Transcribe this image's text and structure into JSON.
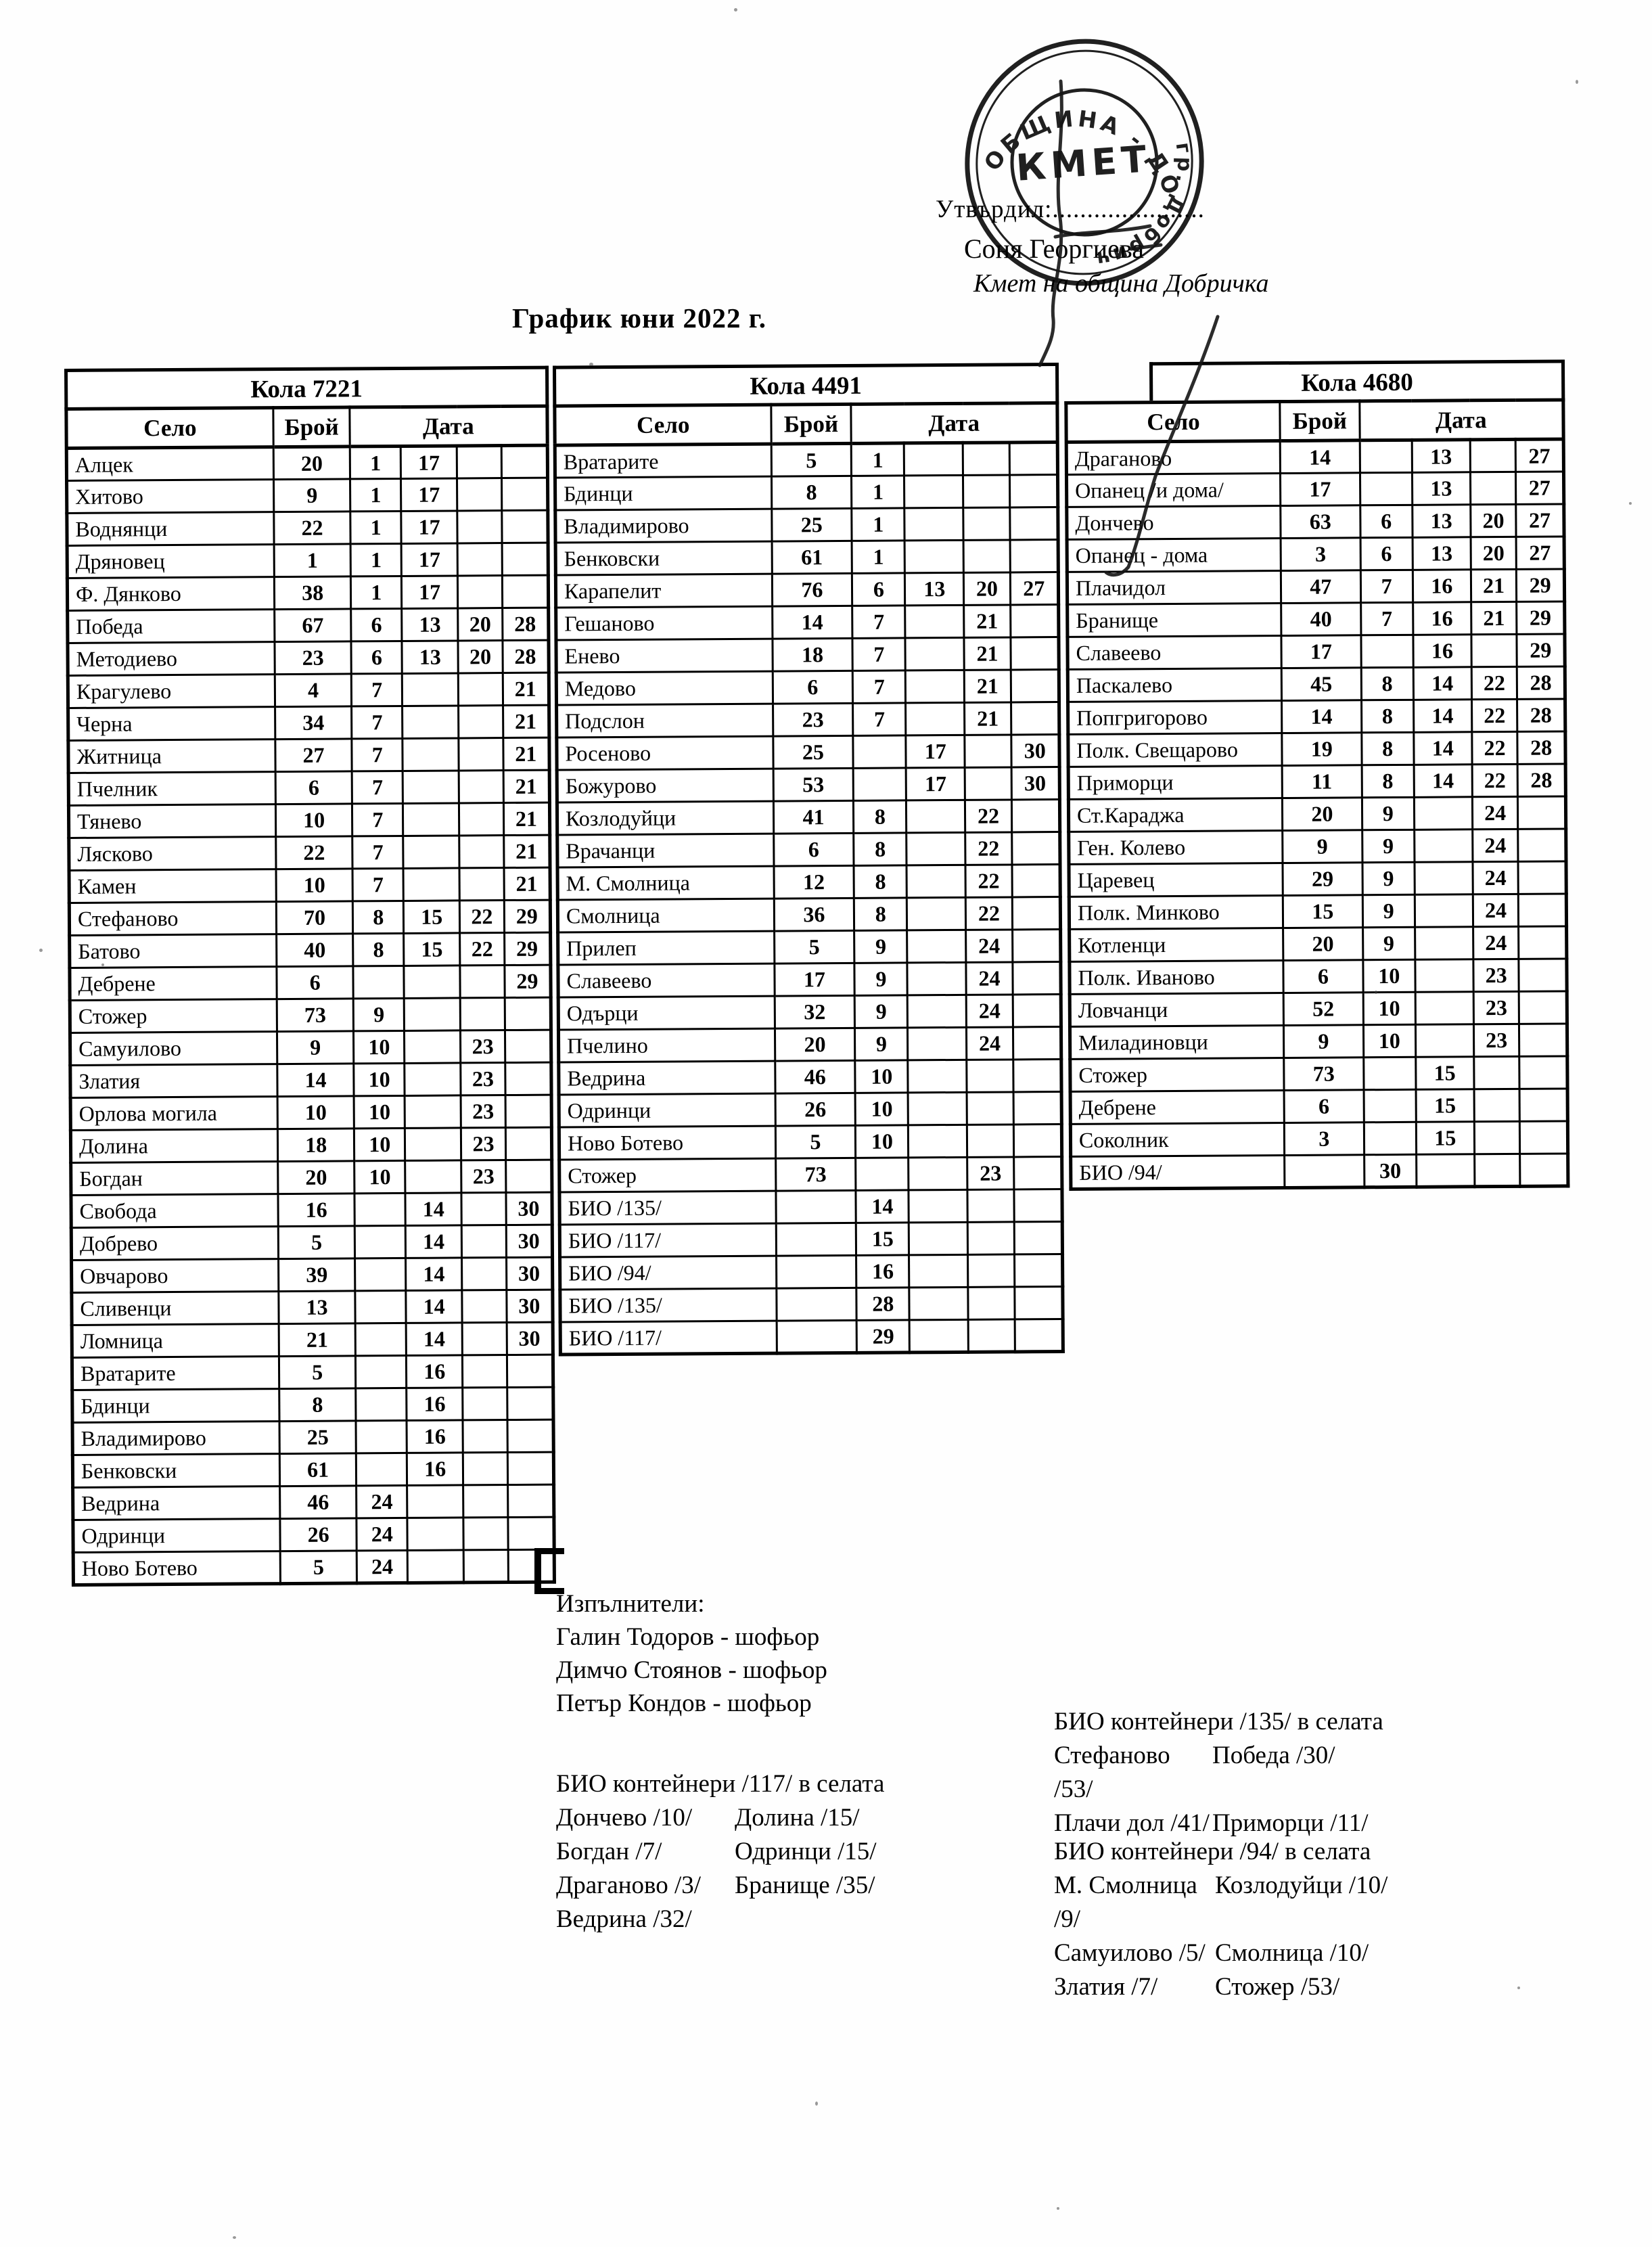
{
  "approval": {
    "label": "Утвърдил:......................",
    "name": "Соня Георгиева",
    "role": "Кмет  на община Добричка"
  },
  "stamp": {
    "ring_text_top": "ОБЩИНА - ДОБРИЧКА",
    "ring_text_right": "гр. Добрич",
    "center_text": "КМЕТ"
  },
  "title": "График юни 2022 г.",
  "columns": {
    "village": "Село",
    "count": "Брой",
    "date": "Дата"
  },
  "tables": [
    {
      "car": "Кола 7221",
      "rows": [
        [
          "Алцек",
          "20",
          "1",
          "17",
          "",
          ""
        ],
        [
          "Хитово",
          "9",
          "1",
          "17",
          "",
          ""
        ],
        [
          "Воднянци",
          "22",
          "1",
          "17",
          "",
          ""
        ],
        [
          "Дряновец",
          "1",
          "1",
          "17",
          "",
          ""
        ],
        [
          "Ф. Дянково",
          "38",
          "1",
          "17",
          "",
          ""
        ],
        [
          "Победа",
          "67",
          "6",
          "13",
          "20",
          "28"
        ],
        [
          "Методиево",
          "23",
          "6",
          "13",
          "20",
          "28"
        ],
        [
          "Крагулево",
          "4",
          "7",
          "",
          "",
          "21"
        ],
        [
          "Черна",
          "34",
          "7",
          "",
          "",
          "21"
        ],
        [
          "Житница",
          "27",
          "7",
          "",
          "",
          "21"
        ],
        [
          "Пчелник",
          "6",
          "7",
          "",
          "",
          "21"
        ],
        [
          "Тянево",
          "10",
          "7",
          "",
          "",
          "21"
        ],
        [
          "Лясково",
          "22",
          "7",
          "",
          "",
          "21"
        ],
        [
          "Камен",
          "10",
          "7",
          "",
          "",
          "21"
        ],
        [
          "Стефаново",
          "70",
          "8",
          "15",
          "22",
          "29"
        ],
        [
          "Батово",
          "40",
          "8",
          "15",
          "22",
          "29"
        ],
        [
          "Дебрене",
          "6",
          "",
          "",
          "",
          "29"
        ],
        [
          "Стожер",
          "73",
          "9",
          "",
          "",
          ""
        ],
        [
          "Самуилово",
          "9",
          "10",
          "",
          "23",
          ""
        ],
        [
          "Златия",
          "14",
          "10",
          "",
          "23",
          ""
        ],
        [
          "Орлова могила",
          "10",
          "10",
          "",
          "23",
          ""
        ],
        [
          "Долина",
          "18",
          "10",
          "",
          "23",
          ""
        ],
        [
          "Богдан",
          "20",
          "10",
          "",
          "23",
          ""
        ],
        [
          "Свобода",
          "16",
          "",
          "14",
          "",
          "30"
        ],
        [
          "Добрево",
          "5",
          "",
          "14",
          "",
          "30"
        ],
        [
          "Овчарово",
          "39",
          "",
          "14",
          "",
          "30"
        ],
        [
          "Сливенци",
          "13",
          "",
          "14",
          "",
          "30"
        ],
        [
          "Ломница",
          "21",
          "",
          "14",
          "",
          "30"
        ],
        [
          "Вратарите",
          "5",
          "",
          "16",
          "",
          ""
        ],
        [
          "Бдинци",
          "8",
          "",
          "16",
          "",
          ""
        ],
        [
          "Владимирово",
          "25",
          "",
          "16",
          "",
          ""
        ],
        [
          "Бенковски",
          "61",
          "",
          "16",
          "",
          ""
        ],
        [
          "Ведрина",
          "46",
          "24",
          "",
          "",
          ""
        ],
        [
          "Одринци",
          "26",
          "24",
          "",
          "",
          ""
        ],
        [
          "Ново Ботево",
          "5",
          "24",
          "",
          "",
          ""
        ]
      ]
    },
    {
      "car": "Кола 4491",
      "rows": [
        [
          "Вратарите",
          "5",
          "1",
          "",
          "",
          ""
        ],
        [
          "Бдинци",
          "8",
          "1",
          "",
          "",
          ""
        ],
        [
          "Владимирово",
          "25",
          "1",
          "",
          "",
          ""
        ],
        [
          "Бенковски",
          "61",
          "1",
          "",
          "",
          ""
        ],
        [
          "Карапелит",
          "76",
          "6",
          "13",
          "20",
          "27"
        ],
        [
          "Гешаново",
          "14",
          "7",
          "",
          "21",
          ""
        ],
        [
          "Енево",
          "18",
          "7",
          "",
          "21",
          ""
        ],
        [
          "Медово",
          "6",
          "7",
          "",
          "21",
          ""
        ],
        [
          "Подслон",
          "23",
          "7",
          "",
          "21",
          ""
        ],
        [
          "Росеново",
          "25",
          "",
          "17",
          "",
          "30"
        ],
        [
          "Божурово",
          "53",
          "",
          "17",
          "",
          "30"
        ],
        [
          "Козлодуйци",
          "41",
          "8",
          "",
          "22",
          ""
        ],
        [
          "Врачанци",
          "6",
          "8",
          "",
          "22",
          ""
        ],
        [
          "М. Смолница",
          "12",
          "8",
          "",
          "22",
          ""
        ],
        [
          "Смолница",
          "36",
          "8",
          "",
          "22",
          ""
        ],
        [
          "Прилеп",
          "5",
          "9",
          "",
          "24",
          ""
        ],
        [
          "Славеево",
          "17",
          "9",
          "",
          "24",
          ""
        ],
        [
          "Одърци",
          "32",
          "9",
          "",
          "24",
          ""
        ],
        [
          "Пчелино",
          "20",
          "9",
          "",
          "24",
          ""
        ],
        [
          "Ведрина",
          "46",
          "10",
          "",
          "",
          ""
        ],
        [
          "Одринци",
          "26",
          "10",
          "",
          "",
          ""
        ],
        [
          "Ново Ботево",
          "5",
          "10",
          "",
          "",
          ""
        ],
        [
          "Стожер",
          "73",
          "",
          "",
          "23",
          ""
        ],
        [
          "БИО /135/",
          "",
          "14",
          "",
          "",
          ""
        ],
        [
          "БИО /117/",
          "",
          "15",
          "",
          "",
          ""
        ],
        [
          "БИО /94/",
          "",
          "16",
          "",
          "",
          ""
        ],
        [
          "БИО /135/",
          "",
          "28",
          "",
          "",
          ""
        ],
        [
          "БИО /117/",
          "",
          "29",
          "",
          "",
          ""
        ]
      ]
    },
    {
      "car": "Кола 4680",
      "rows": [
        [
          "Драганово",
          "14",
          "",
          "13",
          "",
          "27"
        ],
        [
          "Опанец /и дома/",
          "17",
          "",
          "13",
          "",
          "27"
        ],
        [
          "Дончево",
          "63",
          "6",
          "13",
          "20",
          "27"
        ],
        [
          "Опанец - дома",
          "3",
          "6",
          "13",
          "20",
          "27"
        ],
        [
          "Плачидол",
          "47",
          "7",
          "16",
          "21",
          "29"
        ],
        [
          "Бранище",
          "40",
          "7",
          "16",
          "21",
          "29"
        ],
        [
          "Славеево",
          "17",
          "",
          "16",
          "",
          "29"
        ],
        [
          "Паскалево",
          "45",
          "8",
          "14",
          "22",
          "28"
        ],
        [
          "Попгригорово",
          "14",
          "8",
          "14",
          "22",
          "28"
        ],
        [
          "Полк. Свещарово",
          "19",
          "8",
          "14",
          "22",
          "28"
        ],
        [
          "Приморци",
          "11",
          "8",
          "14",
          "22",
          "28"
        ],
        [
          "Ст.Караджа",
          "20",
          "9",
          "",
          "24",
          ""
        ],
        [
          "Ген. Колево",
          "9",
          "9",
          "",
          "24",
          ""
        ],
        [
          "Царевец",
          "29",
          "9",
          "",
          "24",
          ""
        ],
        [
          "Полк. Минково",
          "15",
          "9",
          "",
          "24",
          ""
        ],
        [
          "Котленци",
          "20",
          "9",
          "",
          "24",
          ""
        ],
        [
          "Полк. Иваново",
          "6",
          "10",
          "",
          "23",
          ""
        ],
        [
          "Ловчанци",
          "52",
          "10",
          "",
          "23",
          ""
        ],
        [
          "Миладиновци",
          "9",
          "10",
          "",
          "23",
          ""
        ],
        [
          "Стожер",
          "73",
          "",
          "15",
          "",
          ""
        ],
        [
          "Дебрене",
          "6",
          "",
          "15",
          "",
          ""
        ],
        [
          "Соколник",
          "3",
          "",
          "15",
          "",
          ""
        ],
        [
          "БИО /94/",
          "",
          "30",
          "",
          "",
          ""
        ]
      ]
    }
  ],
  "executors": {
    "heading": "Изпълнители:",
    "items": [
      "Галин Тодоров - шофьор",
      "Димчо Стоянов - шофьор",
      "Петър Кондов - шофьор"
    ]
  },
  "bio_sections": [
    {
      "heading": "БИО контейнери /117/ в селата",
      "left": [
        "Дончево /10/",
        "Богдан /7/",
        "Драганово /3/",
        "Ведрина /32/"
      ],
      "right": [
        "Долина /15/",
        "Одринци /15/",
        "Бранище /35/",
        ""
      ]
    },
    {
      "heading": "БИО контейнери /135/ в селата",
      "left": [
        "Стефаново /53/",
        "Плачи дол /41/"
      ],
      "right": [
        "Победа /30/",
        "Приморци /11/"
      ]
    },
    {
      "heading": "БИО контейнери /94/ в селата",
      "left": [
        "М. Смолница /9/",
        "Самуилово /5/",
        "Златия /7/"
      ],
      "right": [
        "Козлодуйци /10/",
        "Смолница /10/",
        "Стожер /53/"
      ]
    }
  ]
}
